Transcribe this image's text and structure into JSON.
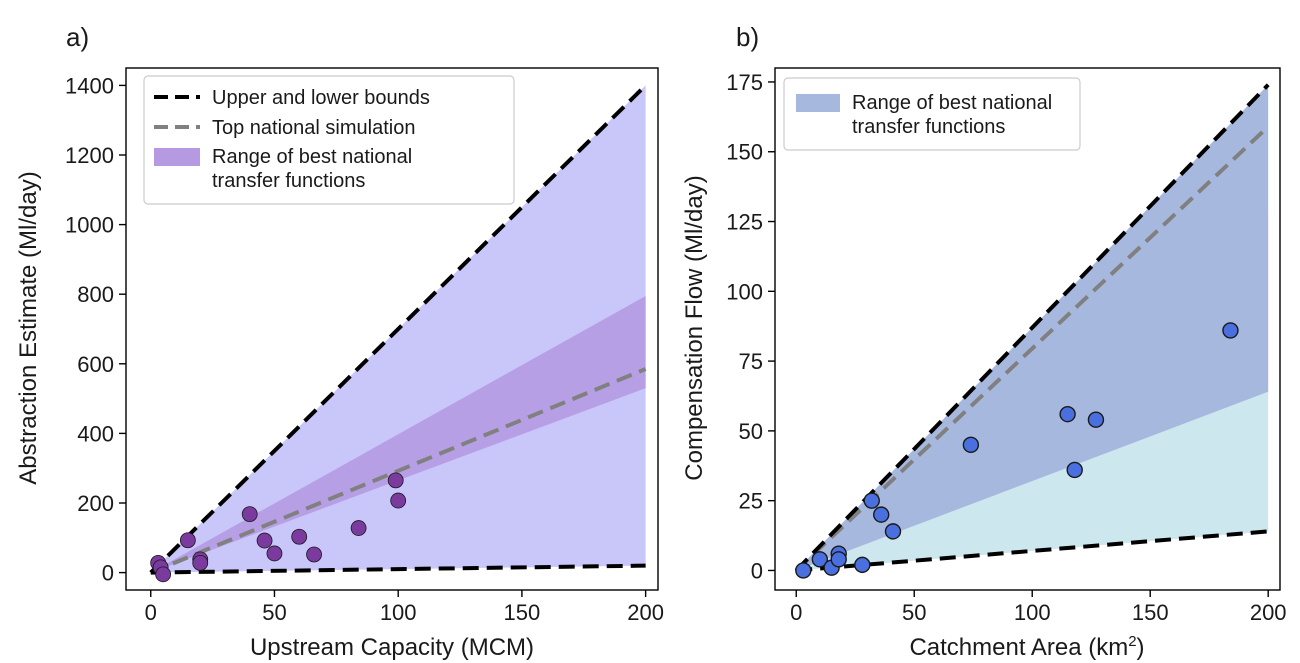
{
  "colors": {
    "bounds": "#000000",
    "top_sim": "#808080",
    "a_range_outer": "#c9c6fa",
    "a_range_inner": "#b59ae2",
    "a_points": "#7a3a9e",
    "b_range_upper": "#a7b8de",
    "b_range_lower": "#cde7ef",
    "b_points": "#4a70e0"
  },
  "chart_data": [
    {
      "panel_label": "a)",
      "type": "scatter",
      "xlabel": "Upstream Capacity (MCM)",
      "ylabel": "Abstraction Estimate (Ml/day)",
      "xlim": [
        -10,
        205
      ],
      "ylim": [
        -50,
        1450
      ],
      "xticks": [
        0,
        50,
        100,
        150,
        200
      ],
      "yticks": [
        0,
        200,
        400,
        600,
        800,
        1000,
        1200,
        1400
      ],
      "x_tick_labels": [
        "0",
        "50",
        "100",
        "150",
        "200"
      ],
      "y_tick_labels": [
        "0",
        "200",
        "400",
        "600",
        "800",
        "1000",
        "1200",
        "1400"
      ],
      "grid": false,
      "legend_position": "top-left",
      "legend": [
        {
          "label": "Upper and lower bounds",
          "style": "black-dashed-line"
        },
        {
          "label": "Top national simulation",
          "style": "grey-dashed-line"
        },
        {
          "label": "Range of best national\n transfer functions",
          "style": "purple-patch"
        }
      ],
      "bounds": {
        "upper": [
          [
            0,
            0
          ],
          [
            200,
            1400
          ]
        ],
        "lower": [
          [
            0,
            0
          ],
          [
            200,
            20
          ]
        ]
      },
      "top_simulation": [
        [
          0,
          0
        ],
        [
          200,
          585
        ]
      ],
      "range_outer": {
        "x": [
          0,
          200
        ],
        "upper": [
          0,
          1400
        ],
        "lower": [
          0,
          20
        ]
      },
      "range_inner": {
        "x": [
          0,
          200
        ],
        "upper": [
          0,
          795
        ],
        "lower": [
          0,
          530
        ]
      },
      "points": [
        {
          "x": 3,
          "y": 28
        },
        {
          "x": 4,
          "y": 15
        },
        {
          "x": 5,
          "y": -5
        },
        {
          "x": 15,
          "y": 93
        },
        {
          "x": 20,
          "y": 38
        },
        {
          "x": 20,
          "y": 28
        },
        {
          "x": 40,
          "y": 168
        },
        {
          "x": 46,
          "y": 92
        },
        {
          "x": 50,
          "y": 55
        },
        {
          "x": 60,
          "y": 103
        },
        {
          "x": 66,
          "y": 52
        },
        {
          "x": 84,
          "y": 128
        },
        {
          "x": 99,
          "y": 265
        },
        {
          "x": 100,
          "y": 207
        }
      ]
    },
    {
      "panel_label": "b)",
      "type": "scatter",
      "xlabel": "Catchment Area (km",
      "xlabel_superscript": "2",
      "xlabel_suffix": ")",
      "ylabel": "Compensation Flow (Ml/day)",
      "xlim": [
        -9,
        205
      ],
      "ylim": [
        -7,
        180
      ],
      "xticks": [
        0,
        50,
        100,
        150,
        200
      ],
      "yticks": [
        0,
        25,
        50,
        75,
        100,
        125,
        150,
        175
      ],
      "x_tick_labels": [
        "0",
        "50",
        "100",
        "150",
        "200"
      ],
      "y_tick_labels": [
        "0",
        "25",
        "50",
        "75",
        "100",
        "125",
        "150",
        "175"
      ],
      "grid": false,
      "legend_position": "top-left",
      "legend": [
        {
          "label": "Range of best national\n transfer functions",
          "style": "blue-patch"
        }
      ],
      "bounds": {
        "upper": [
          [
            0,
            0
          ],
          [
            200,
            174
          ]
        ],
        "lower": [
          [
            0,
            0
          ],
          [
            200,
            14
          ]
        ]
      },
      "top_simulation": [
        [
          0,
          0
        ],
        [
          200,
          159
        ]
      ],
      "range_upper": {
        "x": [
          0,
          200
        ],
        "upper": [
          0,
          174
        ],
        "lower": [
          0,
          64
        ]
      },
      "range_lower": {
        "x": [
          0,
          200
        ],
        "upper": [
          0,
          64
        ],
        "lower": [
          0,
          14
        ]
      },
      "points": [
        {
          "x": 3,
          "y": 0
        },
        {
          "x": 10,
          "y": 4
        },
        {
          "x": 15,
          "y": 1
        },
        {
          "x": 18,
          "y": 6
        },
        {
          "x": 18,
          "y": 4
        },
        {
          "x": 28,
          "y": 2
        },
        {
          "x": 32,
          "y": 25
        },
        {
          "x": 36,
          "y": 20
        },
        {
          "x": 41,
          "y": 14
        },
        {
          "x": 74,
          "y": 45
        },
        {
          "x": 115,
          "y": 56
        },
        {
          "x": 118,
          "y": 36
        },
        {
          "x": 127,
          "y": 54
        },
        {
          "x": 184,
          "y": 86
        }
      ]
    }
  ]
}
